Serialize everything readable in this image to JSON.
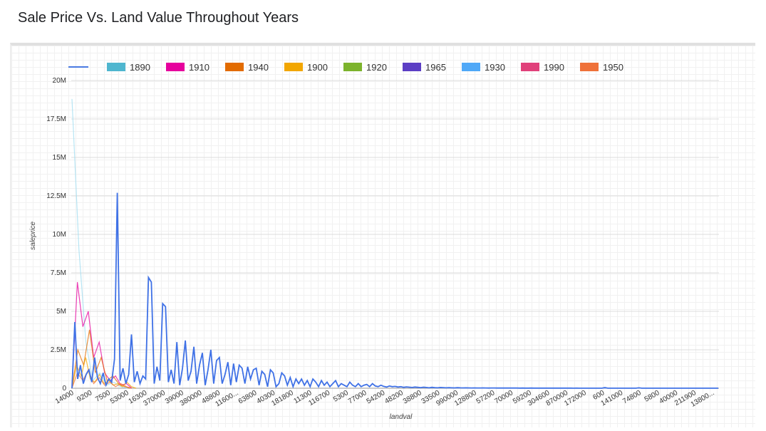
{
  "page": {
    "title": "Sale Price Vs. Land Value Throughout Years"
  },
  "chart_data": {
    "type": "line",
    "xlabel": "landval",
    "ylabel": "saleprice",
    "ylim": [
      0,
      20000000
    ],
    "y_ticks": [
      "0",
      "2.5M",
      "5M",
      "7.5M",
      "10M",
      "12.5M",
      "15M",
      "17.5M",
      "20M"
    ],
    "x_ticks": [
      "14000",
      "9200",
      "7500",
      "53000",
      "16300",
      "370000",
      "39000",
      "380000",
      "48800",
      "11600...",
      "63800",
      "40300",
      "181800",
      "11300",
      "116700",
      "5300",
      "77000",
      "54200",
      "48200",
      "38800",
      "33500",
      "990000",
      "128800",
      "57200",
      "70000",
      "59200",
      "304600",
      "870000",
      "172000",
      "600",
      "141000",
      "74800",
      "5800",
      "40000",
      "211900",
      "13800..."
    ],
    "grid": true,
    "legend_position": "top",
    "legend": [
      {
        "name": "",
        "color": "#4a7ae2",
        "style": "line"
      },
      {
        "name": "1890",
        "color": "#4fb6cf"
      },
      {
        "name": "1910",
        "color": "#e6009d"
      },
      {
        "name": "1940",
        "color": "#e26b00"
      },
      {
        "name": "1900",
        "color": "#f2a600"
      },
      {
        "name": "1920",
        "color": "#7cb32c"
      },
      {
        "name": "1965",
        "color": "#5b3ec4"
      },
      {
        "name": "1930",
        "color": "#4fa8f7"
      },
      {
        "name": "1990",
        "color": "#e0407a"
      },
      {
        "name": "1950",
        "color": "#ef7139"
      }
    ],
    "series": [
      {
        "name": "",
        "color": "#3f71e6",
        "values": [
          0,
          4300000,
          600000,
          1500000,
          300000,
          900000,
          1200000,
          400000,
          2000000,
          700000,
          300000,
          1000000,
          200000,
          600000,
          400000,
          1900000,
          12700000,
          500000,
          1300000,
          300000,
          900000,
          3500000,
          400000,
          1100000,
          300000,
          800000,
          600000,
          7200000,
          6900000,
          300000,
          1400000,
          500000,
          5500000,
          5300000,
          400000,
          1200000,
          300000,
          3000000,
          200000,
          1300000,
          3100000,
          500000,
          1100000,
          2700000,
          300000,
          1500000,
          2300000,
          200000,
          1200000,
          2500000,
          300000,
          1800000,
          2000000,
          300000,
          900000,
          1700000,
          200000,
          1600000,
          400000,
          1500000,
          1300000,
          300000,
          1400000,
          600000,
          1200000,
          1300000,
          200000,
          1100000,
          900000,
          100000,
          1200000,
          1000000,
          100000,
          300000,
          1000000,
          800000,
          200000,
          700000,
          100000,
          600000,
          300000,
          600000,
          200000,
          500000,
          100000,
          600000,
          400000,
          100000,
          500000,
          200000,
          400000,
          100000,
          300000,
          500000,
          100000,
          300000,
          200000,
          100000,
          400000,
          200000,
          100000,
          300000,
          100000,
          200000,
          250000,
          100000,
          300000,
          150000,
          100000,
          200000,
          120000,
          80000,
          150000,
          100000,
          120000,
          80000,
          100000,
          60000,
          90000,
          70000,
          50000,
          80000,
          60000,
          40000,
          70000,
          50000,
          30000,
          60000,
          40000,
          30000,
          50000,
          40000,
          30000,
          40000,
          30000,
          25000,
          35000,
          30000,
          25000,
          30000,
          25000,
          20000,
          25000,
          20000,
          20000,
          25000,
          20000,
          15000,
          20000,
          20000,
          15000,
          20000,
          15000,
          15000,
          15000,
          12000,
          15000,
          12000,
          10000,
          12000,
          10000,
          10000,
          12000,
          10000,
          8000,
          10000,
          10000,
          8000,
          10000,
          8000,
          8000,
          8000,
          7000,
          8000,
          7000,
          7000,
          7000,
          6000,
          7000,
          6000,
          6000,
          6000,
          5000,
          6000,
          5000,
          5000,
          5000,
          5000,
          40000,
          5000,
          5000,
          5000,
          4000,
          5000,
          4000,
          4000,
          4000,
          4000,
          4000,
          4000,
          30000,
          4000,
          4000,
          3000,
          3000,
          3000,
          3000,
          3000,
          3000,
          3000,
          3000,
          3000,
          3000,
          3000,
          3000,
          3000,
          3000,
          3000,
          3000,
          3000,
          3000,
          3000,
          3000,
          3000,
          3000,
          3000,
          3000,
          3000,
          3000
        ]
      },
      {
        "name": "1890",
        "color": "#9fdcf0",
        "values": [
          18800000,
          9000000,
          3000000,
          500000,
          1000000,
          200000,
          400000,
          100000,
          0
        ]
      },
      {
        "name": "1910",
        "color": "#e6009d",
        "values": [
          0,
          6900000,
          4000000,
          5000000,
          2000000,
          3000000,
          1000000,
          500000,
          800000,
          200000,
          300000,
          0
        ]
      },
      {
        "name": "1940",
        "color": "#e26b00",
        "values": [
          0,
          2500000,
          1500000,
          3800000,
          1000000,
          2000000,
          500000,
          800000,
          300000,
          100000,
          0
        ]
      },
      {
        "name": "1900",
        "color": "#f2a600",
        "values": [
          0,
          1500000,
          800000,
          2000000,
          600000,
          400000,
          900000,
          300000,
          500000,
          200000,
          300000,
          100000,
          400000,
          100000,
          0
        ]
      },
      {
        "name": "1950",
        "color": "#ef7139",
        "values": [
          0,
          1000000,
          500000,
          1200000,
          300000,
          700000,
          200000,
          400000,
          100000,
          300000,
          100000,
          0
        ]
      }
    ]
  }
}
